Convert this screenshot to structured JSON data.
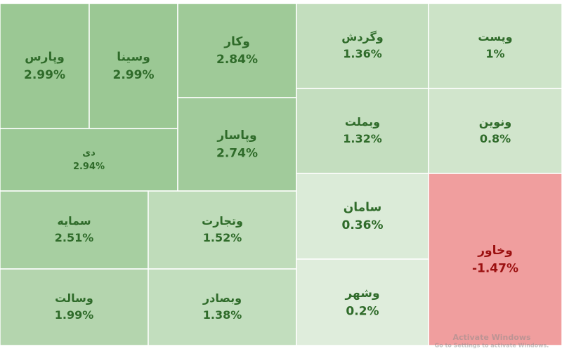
{
  "chart_data": {
    "type": "treemap",
    "categories": [
      "وپارس",
      "وسینا",
      "وکار",
      "دی",
      "وپاسار",
      "سمایه",
      "وتجارت",
      "وسالت",
      "وبصادر",
      "وگردش",
      "وپست",
      "وبملت",
      "ونوین",
      "سامان",
      "وخاور",
      "وشهر"
    ],
    "values": [
      2.99,
      2.99,
      2.84,
      2.94,
      2.74,
      2.51,
      1.52,
      1.99,
      1.38,
      1.36,
      1,
      1.32,
      0.8,
      0.36,
      -1.47,
      0.2
    ],
    "value_labels": [
      "2.99%",
      "2.99%",
      "2.84%",
      "2.94%",
      "2.74%",
      "2.51%",
      "1.52%",
      "1.99%",
      "1.38%",
      "1.36%",
      "1%",
      "1.32%",
      "0.8%",
      "0.36%",
      "-1.47%",
      "0.2%"
    ],
    "watermark": [
      "Activate Windows",
      "Go to Settings to activate Windows."
    ]
  }
}
